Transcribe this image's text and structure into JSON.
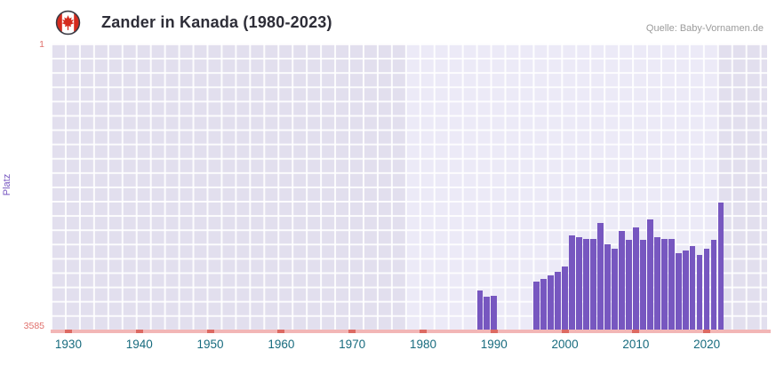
{
  "header": {
    "title": "Zander in Kanada (1980-2023)",
    "source": "Quelle: Baby-Vornamen.de",
    "flag_icon": "canada-flag"
  },
  "chart_data": {
    "type": "bar",
    "title": "Zander in Kanada (1980-2023)",
    "ylabel": "Platz",
    "y_axis": {
      "top_tick": "1",
      "bottom_tick": "3585",
      "min": 1,
      "max": 3585,
      "inverted": true
    },
    "x_axis": {
      "ticks": [
        1930,
        1940,
        1950,
        1960,
        1970,
        1980,
        1990,
        2000,
        2010,
        2020
      ],
      "range": [
        1928,
        2029
      ]
    },
    "highlight_band": {
      "from": 1978,
      "to": 2022
    },
    "grid": "on",
    "legend": "none",
    "colors": {
      "bar": "#7757c0",
      "plot_bg": "#e2dfee",
      "band_bg": "#eceaf7",
      "grid_line": "rgba(255,255,255,0.9)",
      "axis_line": "#f2b6b6",
      "axis_tick": "#dd6a63",
      "x_label": "#176b7e",
      "y_label": "#e0706c",
      "ylabel_color": "#7757c0",
      "flag_red": "#d52b1e"
    },
    "bars": [
      {
        "year": 1988,
        "rank": 3100
      },
      {
        "year": 1989,
        "rank": 3170
      },
      {
        "year": 1990,
        "rank": 3160
      },
      {
        "year": 1996,
        "rank": 2980
      },
      {
        "year": 1997,
        "rank": 2950
      },
      {
        "year": 1998,
        "rank": 2910
      },
      {
        "year": 1999,
        "rank": 2860
      },
      {
        "year": 2000,
        "rank": 2790
      },
      {
        "year": 2001,
        "rank": 2400
      },
      {
        "year": 2002,
        "rank": 2430
      },
      {
        "year": 2003,
        "rank": 2450
      },
      {
        "year": 2004,
        "rank": 2450
      },
      {
        "year": 2005,
        "rank": 2250
      },
      {
        "year": 2006,
        "rank": 2520
      },
      {
        "year": 2007,
        "rank": 2570
      },
      {
        "year": 2008,
        "rank": 2350
      },
      {
        "year": 2009,
        "rank": 2460
      },
      {
        "year": 2010,
        "rank": 2300
      },
      {
        "year": 2011,
        "rank": 2460
      },
      {
        "year": 2012,
        "rank": 2200
      },
      {
        "year": 2013,
        "rank": 2430
      },
      {
        "year": 2014,
        "rank": 2450
      },
      {
        "year": 2015,
        "rank": 2450
      },
      {
        "year": 2016,
        "rank": 2630
      },
      {
        "year": 2017,
        "rank": 2590
      },
      {
        "year": 2018,
        "rank": 2540
      },
      {
        "year": 2019,
        "rank": 2650
      },
      {
        "year": 2020,
        "rank": 2570
      },
      {
        "year": 2021,
        "rank": 2460
      },
      {
        "year": 2022,
        "rank": 1990
      }
    ]
  }
}
